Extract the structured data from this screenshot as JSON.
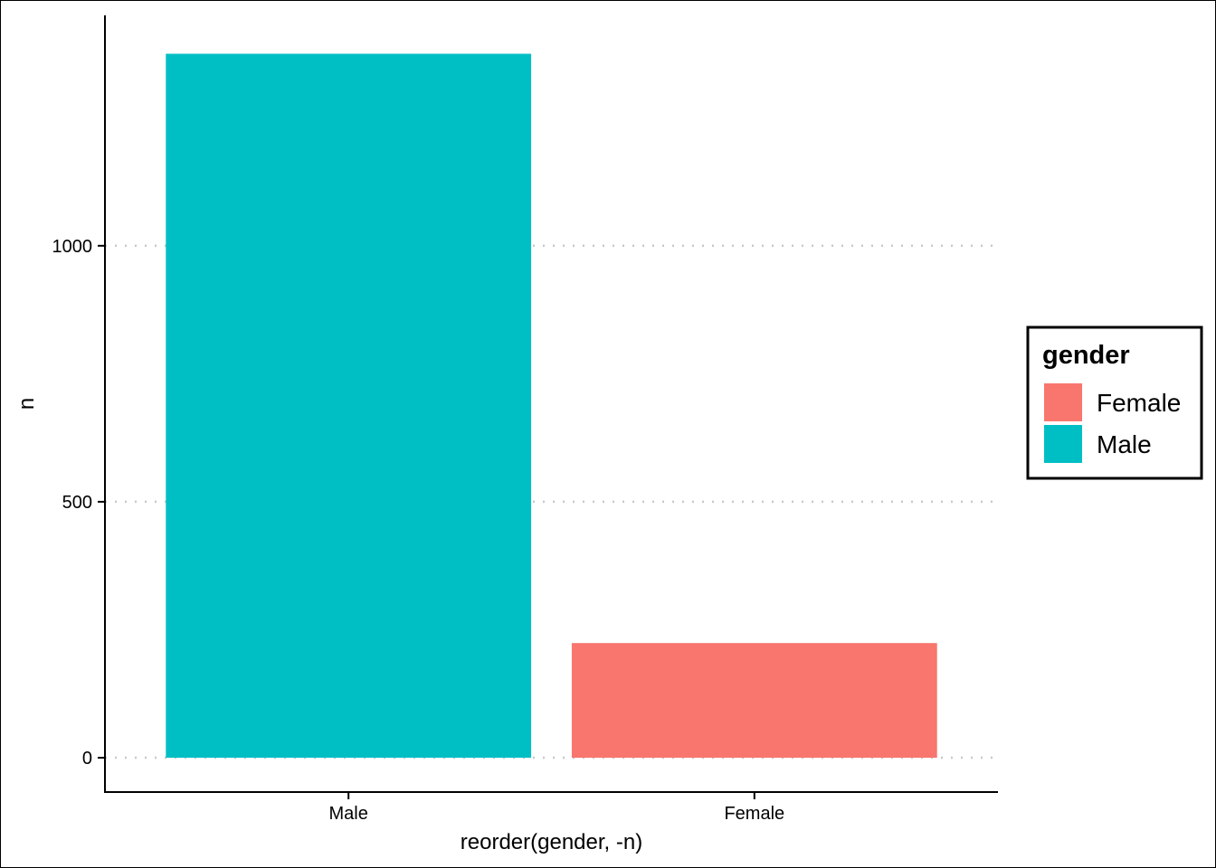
{
  "chart_data": {
    "type": "bar",
    "categories": [
      "Male",
      "Female"
    ],
    "values": [
      1375,
      224
    ],
    "colors": {
      "Male": "#00BFC4",
      "Female": "#F8766D"
    },
    "xlabel": "reorder(gender, -n)",
    "ylabel": "n",
    "ylim": [
      -67,
      1450
    ],
    "yticks": [
      0,
      500,
      1000
    ],
    "ytick_labels": [
      "0",
      "500",
      "1000"
    ],
    "grid": "horizontal dotted",
    "legend": {
      "title": "gender",
      "placement": "right",
      "entries": [
        {
          "label": "Female",
          "color": "#F8766D"
        },
        {
          "label": "Male",
          "color": "#00BFC4"
        }
      ]
    }
  }
}
